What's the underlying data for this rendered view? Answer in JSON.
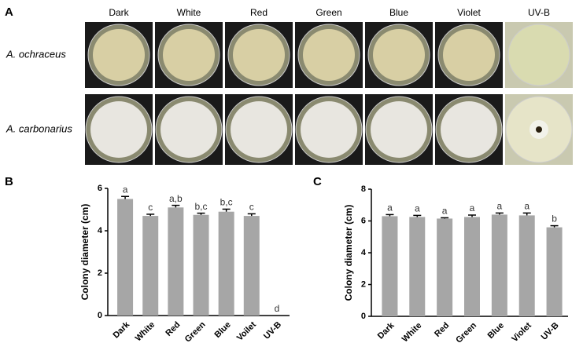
{
  "panel_a": {
    "label": "A",
    "columns": [
      "Dark",
      "White",
      "Red",
      "Green",
      "Blue",
      "Violet",
      "UV-B"
    ],
    "rows": [
      "A. ochraceus",
      "A. carbonarius"
    ]
  },
  "chart_data": [
    {
      "type": "bar",
      "panel": "B",
      "ylabel": "Colony diameter (cm)",
      "categories": [
        "Dark",
        "White",
        "Red",
        "Green",
        "Blue",
        "Voilet",
        "UV-B"
      ],
      "values": [
        5.5,
        4.7,
        5.1,
        4.75,
        4.9,
        4.7,
        0
      ],
      "errors": [
        0.12,
        0.08,
        0.1,
        0.08,
        0.12,
        0.1,
        0
      ],
      "significance": [
        "a",
        "c",
        "a,b",
        "b,c",
        "b,c",
        "c",
        "d"
      ],
      "color": "#a6a6a6",
      "ylim": [
        0,
        6
      ],
      "yticks": [
        0,
        2,
        4,
        6
      ]
    },
    {
      "type": "bar",
      "panel": "C",
      "ylabel": "Colony diameter (cm)",
      "categories": [
        "Dark",
        "White",
        "Red",
        "Green",
        "Blue",
        "Violet",
        "UV-B"
      ],
      "values": [
        6.3,
        6.25,
        6.15,
        6.25,
        6.4,
        6.35,
        5.6
      ],
      "errors": [
        0.1,
        0.1,
        0.05,
        0.12,
        0.1,
        0.15,
        0.1
      ],
      "significance": [
        "a",
        "a",
        "a",
        "a",
        "a",
        "a",
        "b"
      ],
      "color": "#a6a6a6",
      "ylim": [
        0,
        8
      ],
      "yticks": [
        0,
        2,
        4,
        6,
        8
      ]
    }
  ]
}
